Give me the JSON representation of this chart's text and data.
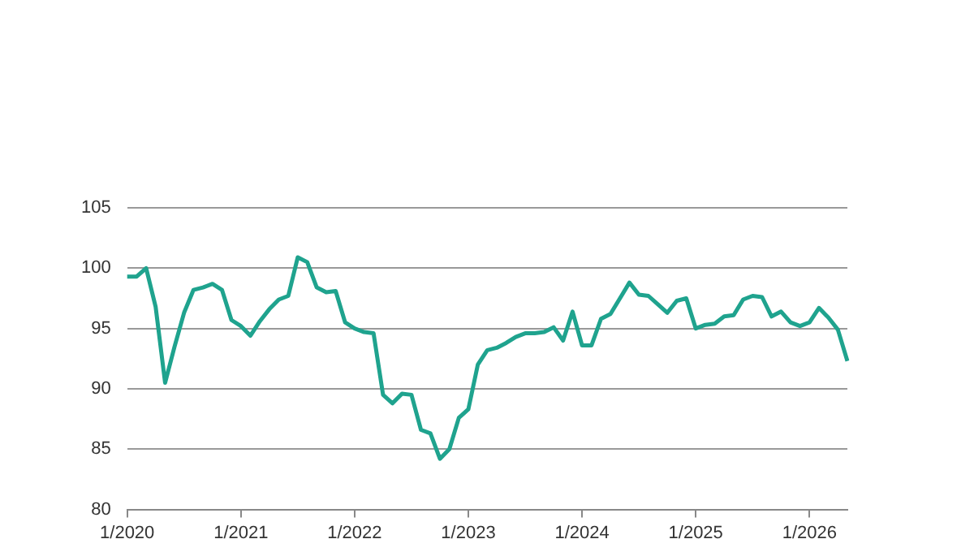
{
  "chart_data": {
    "type": "line",
    "categories": [
      "1/2020",
      null,
      null,
      null,
      null,
      null,
      null,
      null,
      null,
      null,
      null,
      null,
      "1/2021",
      null,
      null,
      null,
      null,
      null,
      null,
      null,
      null,
      null,
      null,
      null,
      "1/2022",
      null,
      null,
      null,
      null,
      null,
      null,
      null,
      null,
      null,
      null,
      null,
      "1/2023",
      null,
      null,
      null,
      null,
      null,
      null,
      null,
      null,
      null,
      null,
      null,
      "1/2024",
      null,
      null,
      null,
      null,
      null,
      null,
      null,
      null,
      null,
      null,
      null,
      "1/2025",
      null,
      null,
      null,
      null,
      null,
      null,
      null,
      null,
      null,
      null,
      null,
      "1/2026",
      null,
      null,
      null,
      null
    ],
    "series": [
      {
        "color": "#1fa38e",
        "values": [
          99.3,
          99.3,
          100.0,
          96.8,
          90.5,
          93.5,
          96.3,
          98.2,
          98.4,
          98.7,
          98.2,
          95.7,
          95.2,
          94.4,
          95.6,
          96.6,
          97.4,
          97.7,
          100.9,
          100.5,
          98.4,
          98.0,
          98.1,
          95.5,
          95.0,
          94.7,
          94.6,
          89.5,
          88.8,
          89.6,
          89.5,
          86.6,
          86.3,
          84.2,
          85.0,
          87.6,
          88.3,
          92.0,
          93.2,
          93.4,
          93.8,
          94.3,
          94.6,
          94.6,
          94.7,
          95.1,
          94.0,
          96.4,
          93.6,
          93.6,
          95.8,
          96.2,
          97.5,
          98.8,
          97.8,
          97.7,
          97.0,
          96.3,
          97.3,
          97.5,
          95.0,
          95.3,
          95.4,
          96.0,
          96.1,
          97.4,
          97.7,
          97.6,
          96.0,
          96.4,
          95.5,
          95.2,
          95.5,
          96.7,
          95.9,
          94.9,
          92.3
        ]
      }
    ],
    "ylim": [
      80,
      105
    ],
    "yticks": [
      80,
      85,
      90,
      95,
      100,
      105
    ],
    "grid": "y",
    "legend": false,
    "marker": "none",
    "line_style": "solid"
  }
}
